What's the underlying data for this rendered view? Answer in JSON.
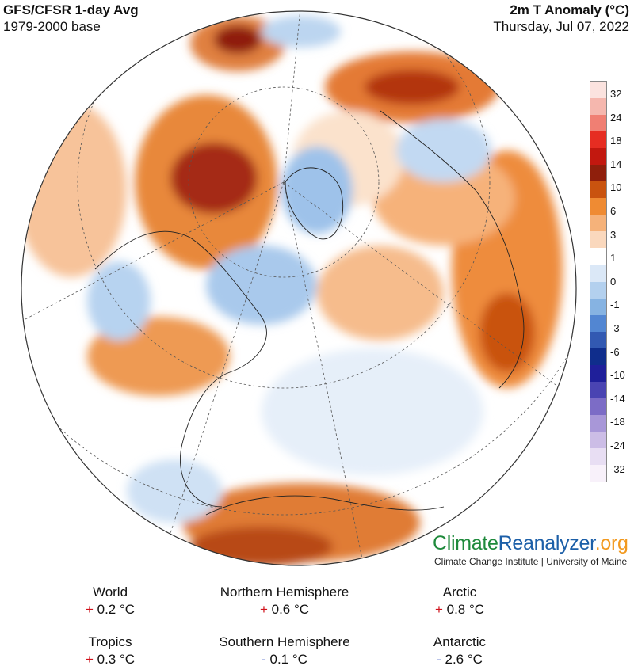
{
  "header": {
    "left_title": "GFS/CFSR 1-day Avg",
    "left_subtitle": "1979-2000 base",
    "right_title": "2m T Anomaly (°C)",
    "right_date": "Thursday, Jul 07, 2022"
  },
  "legend": {
    "labels": [
      "32",
      "24",
      "18",
      "14",
      "10",
      "6",
      "3",
      "1",
      "0",
      "-1",
      "-3",
      "-6",
      "-10",
      "-14",
      "-18",
      "-24",
      "-32"
    ],
    "colors": [
      "#fbe3df",
      "#f5b7ae",
      "#f07f73",
      "#e62d22",
      "#c2180f",
      "#8f1f0c",
      "#c9530f",
      "#ef8b33",
      "#f5b27a",
      "#fad8bd",
      "#ffffff",
      "#dbe8f7",
      "#b3d0ee",
      "#86b3e2",
      "#5286d2",
      "#3259b2",
      "#0f2d8c",
      "#1f1f9a",
      "#4a44b2",
      "#7c6cc6",
      "#a897d8",
      "#ccbde6",
      "#e8def3",
      "#f8f1fa"
    ]
  },
  "branding": {
    "brand_climate": "Climate",
    "brand_reanalyzer": "Reanalyzer",
    "brand_org": ".org",
    "subtitle": "Climate Change Institute | University of Maine"
  },
  "stats": {
    "world": {
      "name": "World",
      "sign": "+",
      "value": "0.2 °C"
    },
    "nh": {
      "name": "Northern Hemisphere",
      "sign": "+",
      "value": "0.6 °C"
    },
    "arctic": {
      "name": "Arctic",
      "sign": "+",
      "value": "0.8 °C"
    },
    "tropics": {
      "name": "Tropics",
      "sign": "+",
      "value": "0.3 °C"
    },
    "sh": {
      "name": "Southern Hemisphere",
      "sign": "-",
      "value": "0.1 °C"
    },
    "antarctic": {
      "name": "Antarctic",
      "sign": "-",
      "value": "2.6 °C"
    }
  }
}
